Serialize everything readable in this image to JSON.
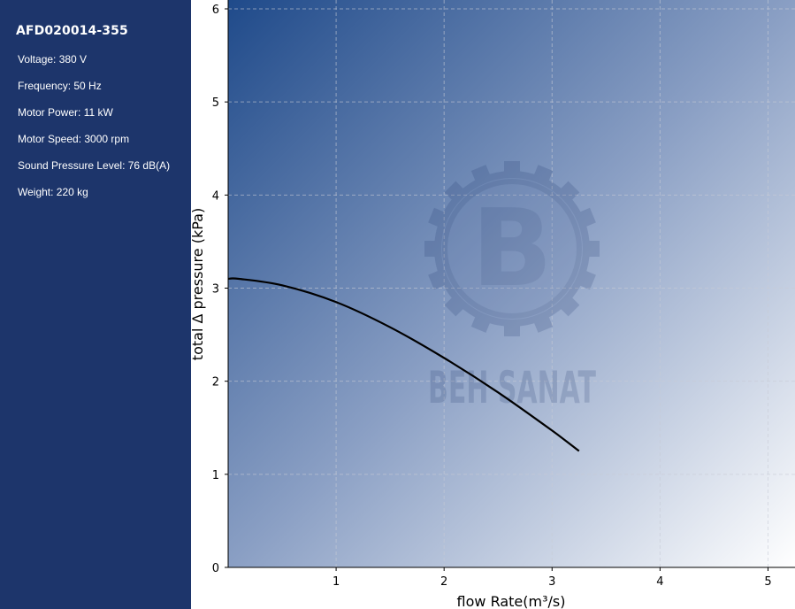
{
  "sidebar": {
    "model": "AFD020014-355",
    "specs": [
      "Voltage: 380 V",
      "Frequency: 50 Hz",
      "Motor Power: 11 kW",
      "Motor Speed: 3000 rpm",
      "Sound Pressure Level: 76 dB(A)",
      "Weight: 220 kg"
    ]
  },
  "watermark": {
    "text": "BEH SANAT",
    "icon": "gear-b-logo-icon"
  },
  "colors": {
    "sidebar": "#1d356b",
    "gradient_start": "#1f4a8a",
    "gradient_end": "#ffffff",
    "curve": "#000000"
  },
  "chart_data": {
    "type": "line",
    "xlabel": "flow Rate(m³/s)",
    "ylabel": "total Δ pressure (kPa)",
    "xlim": [
      0,
      5.25
    ],
    "ylim": [
      0,
      6
    ],
    "xticks": [
      1,
      2,
      3,
      4,
      5
    ],
    "yticks": [
      0,
      1,
      2,
      3,
      4,
      5,
      6
    ],
    "grid": true,
    "series": [
      {
        "x": [
          0,
          0.1,
          0.5,
          1.0,
          1.5,
          2.0,
          2.5,
          3.0,
          3.25
        ],
        "y": [
          3.1,
          3.1,
          3.03,
          2.85,
          2.58,
          2.25,
          1.88,
          1.47,
          1.25
        ]
      }
    ]
  }
}
